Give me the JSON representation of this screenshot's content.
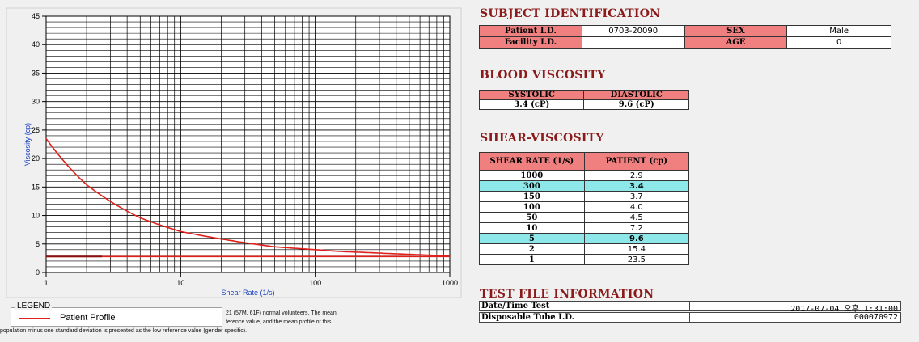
{
  "chart_data": {
    "type": "line",
    "xlabel": "Shear Rate (1/s)",
    "ylabel": "Viscosity (cp)",
    "x_scale": "log",
    "xlim": [
      1,
      1000
    ],
    "ylim": [
      0,
      45
    ],
    "x_ticks": [
      "1",
      "10",
      "100",
      "1000"
    ],
    "y_ticks": [
      "0",
      "5",
      "10",
      "15",
      "20",
      "25",
      "30",
      "35",
      "40",
      "45"
    ],
    "grid": true,
    "series": [
      {
        "name": "Patient Profile",
        "color": "#e0201a",
        "x": [
          1,
          2,
          5,
          10,
          50,
          100,
          150,
          300,
          1000
        ],
        "y": [
          23.5,
          15.4,
          9.6,
          7.2,
          4.5,
          4.0,
          3.7,
          3.4,
          2.9
        ]
      },
      {
        "color": "#e0201a",
        "x": [
          1,
          1000
        ],
        "y": [
          2.8,
          2.8
        ]
      },
      {
        "color": "#8b1010",
        "x": [
          1,
          2.6
        ],
        "y": [
          2.8,
          2.8
        ]
      }
    ]
  },
  "legend": {
    "title": "LEGEND",
    "entries": [
      {
        "label": "Patient Profile",
        "color": "#e0201a"
      }
    ]
  },
  "footnote": {
    "line1": "21 (57M, 61F) normal volunteers.  The mean",
    "line2": "ference value, and the mean profile of this",
    "line3": "population minus one standard deviation is presented as the low reference value (gender specific)."
  },
  "subject": {
    "title": "SUBJECT IDENTIFICATION",
    "patient_id_label": "Patient I.D.",
    "patient_id": "0703-20090",
    "facility_id_label": "Facility I.D.",
    "facility_id": "",
    "sex_label": "SEX",
    "sex": "Male",
    "age_label": "AGE",
    "age": "0"
  },
  "blood_viscosity": {
    "title": "BLOOD VISCOSITY",
    "systolic_label": "SYSTOLIC",
    "systolic": "3.4 (cP)",
    "diastolic_label": "DIASTOLIC",
    "diastolic": "9.6 (cP)"
  },
  "shear_viscosity": {
    "title": "SHEAR-VISCOSITY",
    "col_rate": "SHEAR RATE (1/s)",
    "col_patient": "PATIENT (cp)",
    "rows": [
      {
        "rate": "1000",
        "value": "2.9",
        "highlight": false
      },
      {
        "rate": "300",
        "value": "3.4",
        "highlight": true
      },
      {
        "rate": "150",
        "value": "3.7",
        "highlight": false
      },
      {
        "rate": "100",
        "value": "4.0",
        "highlight": false
      },
      {
        "rate": "50",
        "value": "4.5",
        "highlight": false
      },
      {
        "rate": "10",
        "value": "7.2",
        "highlight": false
      },
      {
        "rate": "5",
        "value": "9.6",
        "highlight": true
      },
      {
        "rate": "2",
        "value": "15.4",
        "highlight": false
      },
      {
        "rate": "1",
        "value": "23.5",
        "highlight": false
      }
    ]
  },
  "test_file": {
    "title": "TEST FILE INFORMATION",
    "date_label": "Date/Time Test",
    "date_value": "2017-07-04  오후 1:31:00",
    "tube_label": "Disposable Tube I.D.",
    "tube_value": "000070972"
  }
}
